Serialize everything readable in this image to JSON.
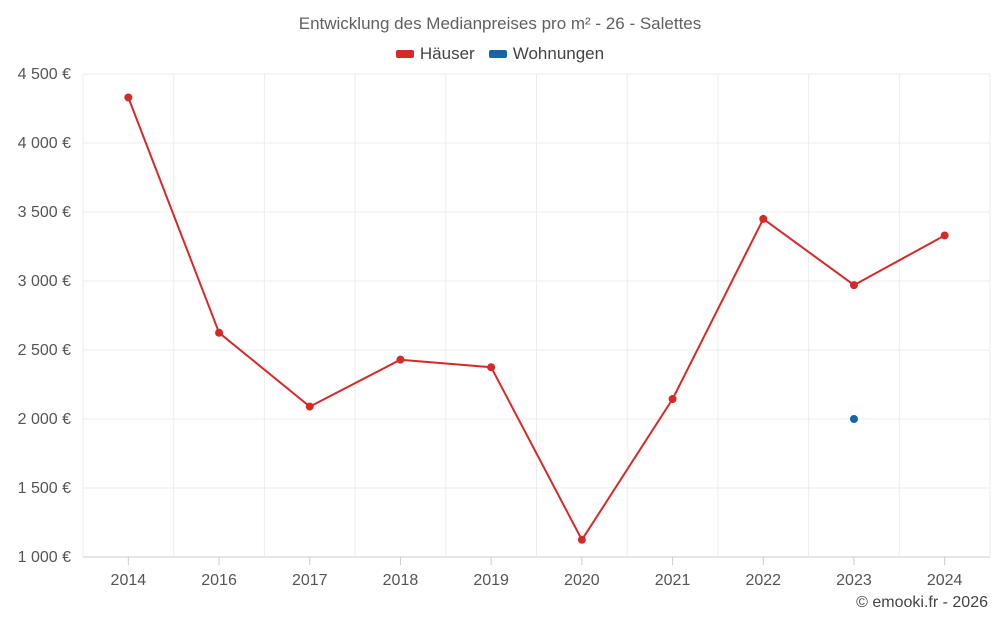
{
  "chart_data": {
    "type": "line",
    "title": "Entwicklung des Medianpreises pro m² - 26 - Salettes",
    "categories": [
      "2014",
      "2016",
      "2017",
      "2018",
      "2019",
      "2020",
      "2021",
      "2022",
      "2023",
      "2024"
    ],
    "series": [
      {
        "name": "Häuser",
        "color": "#d42a2a",
        "values": [
          4330,
          2625,
          2090,
          2430,
          2375,
          1125,
          2145,
          3450,
          2970,
          3330
        ]
      },
      {
        "name": "Wohnungen",
        "color": "#1565a8",
        "values": [
          null,
          null,
          null,
          null,
          null,
          null,
          null,
          null,
          2000,
          null
        ]
      }
    ],
    "yaxis": {
      "min": 1000,
      "max": 4500,
      "ticks": [
        1000,
        1500,
        2000,
        2500,
        3000,
        3500,
        4000,
        4500
      ],
      "tick_labels": [
        "1 000 €",
        "1 500 €",
        "2 000 €",
        "2 500 €",
        "3 000 €",
        "3 500 €",
        "4 000 €",
        "4 500 €"
      ]
    },
    "xlabel": "",
    "ylabel": "",
    "grid": true,
    "legend_position": "top-center"
  },
  "footer": {
    "copyright": "© emooki.fr - 2026"
  }
}
